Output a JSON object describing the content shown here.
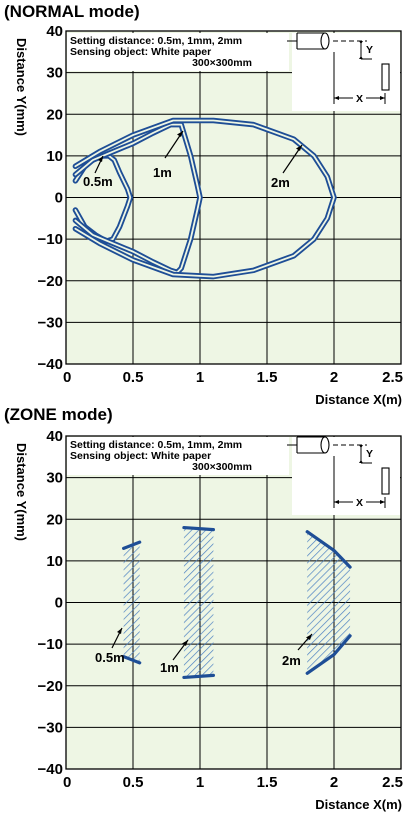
{
  "colors": {
    "plot_bg": "#eef6e4",
    "curve": "#1e4e96",
    "hatch": "#4d82c2",
    "grid": "#000000"
  },
  "chart_data": [
    {
      "type": "line",
      "title": "(NORMAL mode)",
      "xlabel": "Distance X(m)",
      "ylabel": "Distance Y(mm)",
      "xlim": [
        0,
        2.5
      ],
      "ylim": [
        -40,
        40
      ],
      "x_ticks": [
        "0",
        "0.5",
        "1",
        "1.5",
        "2",
        "2.5"
      ],
      "y_ticks": [
        "40",
        "30",
        "20",
        "10",
        "0",
        "−10",
        "−20",
        "−30",
        "−40"
      ],
      "grid": true,
      "notes": [
        "Setting distance: 0.5m, 1mm, 2mm",
        "Sensing object: White paper",
        "300×300mm"
      ],
      "inset_labels": [
        "Y",
        "X"
      ],
      "series": [
        {
          "name": "0.5m",
          "x": [
            0.07,
            0.15,
            0.25,
            0.32,
            0.36,
            0.4,
            0.46,
            0.48,
            0.46,
            0.4,
            0.35,
            0.3,
            0.22,
            0.14,
            0.07
          ],
          "y": [
            4,
            8,
            10,
            10,
            9,
            6,
            2,
            0,
            -2,
            -7,
            -10,
            -10.5,
            -9,
            -7,
            -3
          ]
        },
        {
          "name": "1m",
          "x": [
            0.07,
            0.2,
            0.35,
            0.5,
            0.65,
            0.78,
            0.86,
            0.93,
            0.98,
            1.0,
            0.98,
            0.93,
            0.86,
            0.83,
            0.78,
            0.65,
            0.5,
            0.35,
            0.2,
            0.07
          ],
          "y": [
            5.5,
            9,
            11,
            13,
            15.5,
            17.5,
            17.5,
            10,
            3,
            0,
            -3,
            -10,
            -17,
            -18,
            -17.5,
            -15.5,
            -13,
            -11,
            -9,
            -5.5
          ]
        },
        {
          "name": "2m",
          "x": [
            0.07,
            0.25,
            0.5,
            0.8,
            1.1,
            1.4,
            1.7,
            1.85,
            1.95,
            2.0,
            1.95,
            1.85,
            1.7,
            1.4,
            1.1,
            0.8,
            0.5,
            0.25,
            0.07
          ],
          "y": [
            7.5,
            11,
            15,
            18.5,
            18.5,
            17.5,
            14,
            10,
            5,
            0,
            -5,
            -10,
            -14,
            -17.5,
            -19,
            -18.5,
            -15,
            -11,
            -7.5
          ]
        }
      ],
      "series_labels": [
        "0.5m",
        "1m",
        "2m"
      ]
    },
    {
      "type": "area",
      "title": "(ZONE mode)",
      "xlabel": "Distance X(m)",
      "ylabel": "Distance Y(mm)",
      "xlim": [
        0,
        2.5
      ],
      "ylim": [
        -40,
        40
      ],
      "x_ticks": [
        "0",
        "0.5",
        "1",
        "1.5",
        "2",
        "2.5"
      ],
      "y_ticks": [
        "40",
        "30",
        "20",
        "10",
        "0",
        "−10",
        "−20",
        "−30",
        "−40"
      ],
      "grid": true,
      "notes": [
        "Setting distance: 0.5m, 1mm, 2mm",
        "Sensing object: White paper",
        "300×300mm"
      ],
      "inset_labels": [
        "Y",
        "X"
      ],
      "series": [
        {
          "name": "0.5m",
          "top": {
            "x": [
              0.43,
              0.55
            ],
            "y": [
              13,
              14.5
            ]
          },
          "bottom": {
            "x": [
              0.43,
              0.55
            ],
            "y": [
              -13,
              -14.5
            ]
          }
        },
        {
          "name": "1m",
          "top": {
            "x": [
              0.88,
              1.1
            ],
            "y": [
              18,
              17.5
            ]
          },
          "bottom": {
            "x": [
              0.88,
              1.1
            ],
            "y": [
              -18,
              -17.5
            ]
          }
        },
        {
          "name": "2m",
          "top": {
            "x": [
              1.8,
              2.0,
              2.12
            ],
            "y": [
              17,
              12.5,
              8.5
            ]
          },
          "bottom": {
            "x": [
              1.8,
              2.0,
              2.12
            ],
            "y": [
              -17,
              -12.5,
              -8
            ]
          }
        }
      ],
      "series_labels": [
        "0.5m",
        "1m",
        "2m"
      ]
    }
  ]
}
